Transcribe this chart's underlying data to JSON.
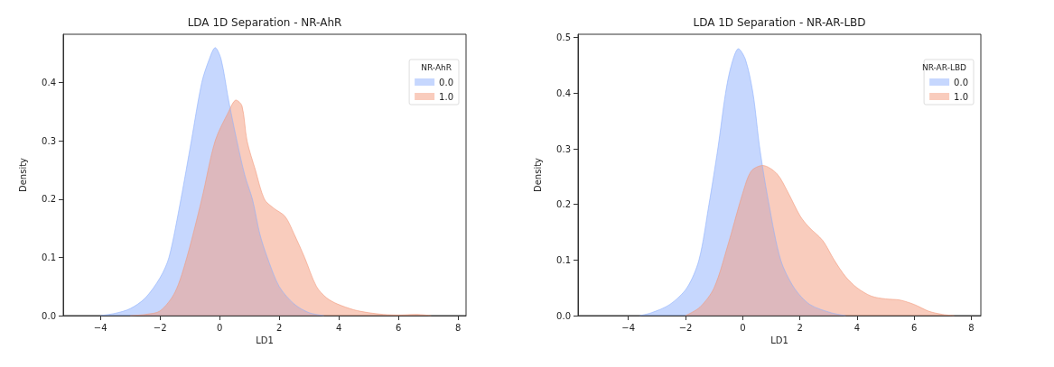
{
  "chart_data": [
    {
      "type": "area",
      "title": "LDA 1D Separation - NR-AhR",
      "xlabel": "LD1",
      "ylabel": "Density",
      "legend_title": "NR-AhR",
      "legend": "top right",
      "grid": false,
      "xlim": [
        -5.25,
        8.27
      ],
      "ylim": [
        0,
        0.483
      ],
      "xticks": [
        -4,
        -2,
        0,
        2,
        4,
        6,
        8
      ],
      "yticks": [
        {
          "value": 0,
          "label": "0.0"
        },
        0.1,
        0.2,
        0.3,
        0.4
      ],
      "series": [
        {
          "name": "0.0",
          "color": "#8db0fe",
          "x": [
            -4,
            -3.5,
            -3,
            -2.5,
            -2,
            -1.7,
            -1.3,
            -0.95,
            -0.6,
            -0.35,
            -0.15,
            0.05,
            0.3,
            0.58,
            0.85,
            1.1,
            1.35,
            1.6,
            2.0,
            2.5,
            3.0,
            3.5
          ],
          "values": [
            0,
            0.004,
            0.012,
            0.03,
            0.065,
            0.1,
            0.2,
            0.3,
            0.4,
            0.44,
            0.46,
            0.44,
            0.37,
            0.3,
            0.24,
            0.2,
            0.14,
            0.1,
            0.05,
            0.02,
            0.005,
            0
          ]
        },
        {
          "name": "1.0",
          "color": "#f49a7b",
          "x": [
            -3,
            -2.5,
            -2,
            -1.5,
            -1.1,
            -0.6,
            -0.15,
            0.3,
            0.55,
            0.75,
            0.92,
            1.2,
            1.5,
            1.8,
            2.2,
            2.5,
            2.85,
            3.25,
            3.6,
            3.95,
            4.5,
            5.0,
            5.5,
            6.0,
            6.6,
            7.1
          ],
          "values": [
            0,
            0.002,
            0.008,
            0.04,
            0.1,
            0.2,
            0.3,
            0.35,
            0.37,
            0.36,
            0.3,
            0.25,
            0.2,
            0.185,
            0.17,
            0.14,
            0.1,
            0.05,
            0.03,
            0.02,
            0.01,
            0.005,
            0.002,
            0.001,
            0.002,
            0
          ]
        }
      ]
    },
    {
      "type": "area",
      "title": "LDA 1D Separation - NR-AR-LBD",
      "xlabel": "LD1",
      "ylabel": "Density",
      "legend_title": "NR-AR-LBD",
      "legend": "top right",
      "grid": false,
      "xlim": [
        -5.76,
        8.33
      ],
      "ylim": [
        0,
        0.506
      ],
      "xticks": [
        -4,
        -2,
        0,
        2,
        4,
        6,
        8
      ],
      "yticks": [
        {
          "value": 0,
          "label": "0.0"
        },
        0.1,
        0.2,
        0.3,
        0.4,
        0.5
      ],
      "series": [
        {
          "name": "0.0",
          "color": "#8db0fe",
          "x": [
            -3.6,
            -3.2,
            -2.55,
            -1.95,
            -1.53,
            -1.18,
            -0.87,
            -0.6,
            -0.4,
            -0.15,
            0.1,
            0.36,
            0.6,
            0.92,
            1.33,
            1.8,
            2.35,
            3.1,
            3.6
          ],
          "values": [
            0,
            0.005,
            0.02,
            0.05,
            0.1,
            0.2,
            0.3,
            0.4,
            0.45,
            0.48,
            0.46,
            0.4,
            0.3,
            0.2,
            0.1,
            0.05,
            0.02,
            0.005,
            0
          ]
        },
        {
          "name": "1.0",
          "color": "#f49a7b",
          "x": [
            -2,
            -1.5,
            -1,
            -0.5,
            0,
            0.3,
            0.7,
            1.2,
            1.6,
            2.0,
            2.3,
            2.8,
            3.2,
            3.6,
            4.0,
            4.5,
            5.0,
            5.5,
            6.0,
            6.5,
            7.0,
            7.4
          ],
          "values": [
            0,
            0.015,
            0.05,
            0.13,
            0.22,
            0.26,
            0.27,
            0.255,
            0.22,
            0.18,
            0.16,
            0.135,
            0.1,
            0.07,
            0.05,
            0.035,
            0.03,
            0.028,
            0.02,
            0.008,
            0.002,
            0
          ]
        }
      ]
    }
  ]
}
